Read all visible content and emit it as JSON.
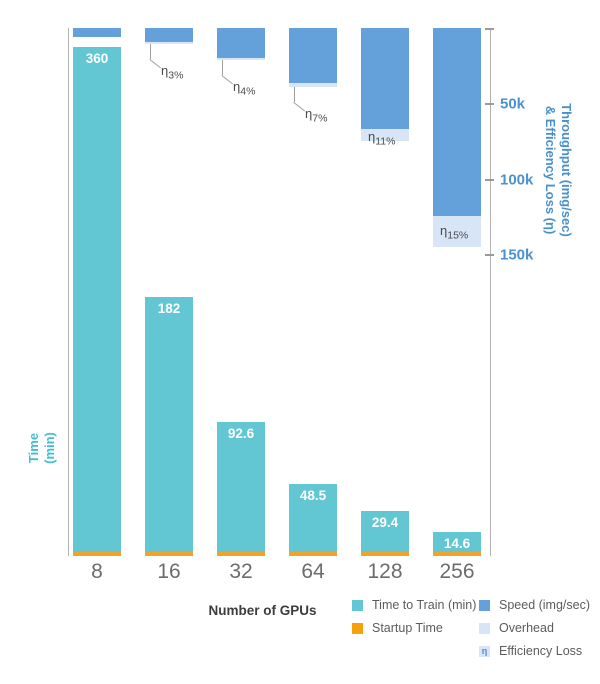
{
  "chart_data": {
    "type": "bar",
    "title": "",
    "categories": [
      "8",
      "16",
      "32",
      "64",
      "128",
      "256"
    ],
    "xlabel": "Number of GPUs",
    "left_axis": {
      "label_lines": [
        "Time",
        "(min)"
      ],
      "unit": "min"
    },
    "right_axis": {
      "label_lines": [
        "Throughput (img/sec)",
        "& Efficiency Loss (η)"
      ],
      "inverted_downward": true,
      "range": [
        0,
        150000
      ],
      "ticks": [
        {
          "value": 0,
          "label": ""
        },
        {
          "value": 50000,
          "label": "50k"
        },
        {
          "value": 100000,
          "label": "100k"
        },
        {
          "value": 150000,
          "label": "150k"
        }
      ]
    },
    "series": [
      {
        "name": "Time to Train (min)",
        "axis": "left",
        "color": "#62c6d3",
        "values": [
          360,
          182,
          92.6,
          48.5,
          29.4,
          14.6
        ],
        "labels": [
          "360",
          "182",
          "92.6",
          "48.5",
          "29.4",
          "14.6"
        ]
      },
      {
        "name": "Startup Time",
        "axis": "left",
        "color": "#f0a32a",
        "values": [
          3,
          3,
          3,
          3,
          3,
          3
        ]
      },
      {
        "name": "Speed (img/sec)",
        "axis": "right",
        "color": "#64a0da",
        "values": [
          5400,
          8800,
          19000,
          36000,
          66500,
          124000
        ]
      },
      {
        "name": "Overhead",
        "axis": "right",
        "color": "#d7e5f6",
        "values": [
          0,
          1300,
          1300,
          2700,
          8000,
          20600
        ]
      }
    ],
    "efficiency_loss": {
      "symbol": "η",
      "values_pct": [
        null,
        3,
        4,
        7,
        11,
        15
      ],
      "labels": [
        "",
        "3%",
        "4%",
        "7%",
        "11%",
        "15%"
      ],
      "style": [
        "none",
        "callout",
        "callout",
        "callout",
        "inline",
        "inline"
      ]
    },
    "grid": false,
    "legend_position": "bottom-right"
  },
  "legend": {
    "columns": [
      {
        "items": [
          {
            "label": "Time to Train (min)",
            "swatch": "#62c6d3"
          },
          {
            "label": "Startup Time",
            "swatch": "#f5a10a"
          }
        ]
      },
      {
        "items": [
          {
            "label": "Speed (img/sec)",
            "swatch": "#64a0da"
          },
          {
            "label": "Overhead",
            "swatch": "#d7e5f6"
          },
          {
            "label": "Efficiency Loss",
            "swatch": "#d7e5f6",
            "glyph": "η"
          }
        ]
      }
    ]
  },
  "colors": {
    "time_bar": "#62c6d3",
    "startup_bar": "#f0a32a",
    "speed_bar": "#64a0da",
    "overhead_bar": "#d7e5f6",
    "left_axis_text": "#43bdd0",
    "right_axis_text": "#4a90cb",
    "x_tick_text": "#6c6c6c",
    "axis_line": "#b3b3b3",
    "annotation_text": "#4b4b4b",
    "bar_value_text": "#ffffff"
  }
}
